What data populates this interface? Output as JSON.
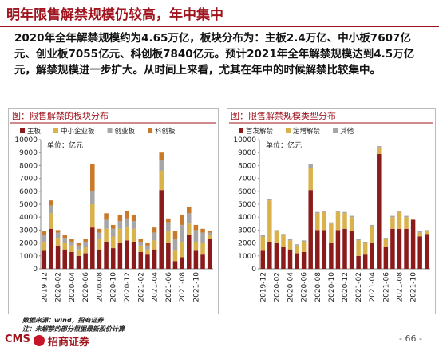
{
  "header": {
    "title": "明年限售解禁规模仍较高，年中集中"
  },
  "summary": "2020年全年解禁规模约为4.65万亿，板块分布为：主板2.4万亿、中小板7607亿元、创业板7055亿元、科创板7840亿元。预计2021年全年解禁规模达到4.5万亿元，解禁规模进一步扩大。从时间上来看，尤其在年中的时候解禁比较集中。",
  "chart_data": [
    {
      "type": "bar",
      "stacked": true,
      "title": "图：限售解禁的板块分布",
      "unit_label": "单位：亿元",
      "categories": [
        "2019-12",
        null,
        "2020-02",
        null,
        "2020-04",
        null,
        "2020-06",
        null,
        "2020-08",
        null,
        "2020-10",
        null,
        "2020-12",
        null,
        "2021-02",
        null,
        "2021-04",
        null,
        "2021-06",
        null,
        "2021-08",
        null,
        "2021-10",
        null,
        null
      ],
      "series": [
        {
          "name": "主板",
          "color": "#8b1a1a",
          "values": [
            1400,
            3100,
            1800,
            1500,
            1300,
            1000,
            1200,
            3200,
            1500,
            2100,
            1600,
            2000,
            2200,
            2100,
            1300,
            1100,
            1500,
            6100,
            2000,
            600,
            900,
            2600,
            1400,
            1100,
            2300
          ]
        },
        {
          "name": "中小企业板",
          "color": "#d9b24c",
          "values": [
            700,
            1200,
            600,
            500,
            500,
            500,
            500,
            1800,
            800,
            1000,
            900,
            1100,
            1000,
            1000,
            500,
            400,
            700,
            1500,
            900,
            800,
            1200,
            900,
            700,
            900,
            300
          ]
        },
        {
          "name": "创业板",
          "color": "#a6a6a6",
          "values": [
            500,
            600,
            400,
            400,
            300,
            300,
            400,
            1000,
            500,
            700,
            600,
            600,
            700,
            600,
            300,
            300,
            600,
            800,
            700,
            900,
            1300,
            800,
            900,
            800,
            200
          ]
        },
        {
          "name": "科创板",
          "color": "#c87a2a",
          "values": [
            300,
            400,
            200,
            200,
            200,
            200,
            200,
            2100,
            300,
            500,
            300,
            500,
            600,
            500,
            200,
            200,
            400,
            600,
            300,
            600,
            800,
            500,
            400,
            300,
            100
          ]
        }
      ],
      "ylim": [
        0,
        10000
      ],
      "yticks": [
        0,
        1000,
        2000,
        3000,
        4000,
        5000,
        6000,
        7000,
        8000,
        9000,
        10000
      ]
    },
    {
      "type": "bar",
      "stacked": true,
      "title": "图：限售解禁规模类型分布",
      "unit_label": "单位：亿元",
      "categories": [
        "2019-12",
        null,
        "2020-02",
        null,
        "2020-04",
        null,
        "2020-06",
        null,
        "2020-08",
        null,
        "2020-10",
        null,
        "2020-12",
        null,
        "2021-02",
        null,
        "2021-04",
        null,
        "2021-06",
        null,
        "2021-08",
        null,
        "2021-10",
        null,
        null
      ],
      "series": [
        {
          "name": "首发解禁",
          "color": "#8b1a1a",
          "values": [
            1400,
            2100,
            2000,
            1700,
            1500,
            1200,
            1300,
            6100,
            3000,
            3000,
            2000,
            3000,
            3100,
            2900,
            1000,
            1100,
            2000,
            8900,
            1700,
            3100,
            3100,
            3100,
            3800,
            2500,
            2700
          ]
        },
        {
          "name": "定增解禁",
          "color": "#d9b24c",
          "values": [
            1100,
            3200,
            900,
            900,
            700,
            600,
            800,
            1700,
            1300,
            1400,
            1500,
            1400,
            1200,
            1100,
            1200,
            900,
            1300,
            500,
            600,
            900,
            1300,
            900,
            0,
            300,
            200
          ]
        },
        {
          "name": "其他",
          "color": "#a6a6a6",
          "values": [
            100,
            100,
            100,
            100,
            100,
            100,
            100,
            300,
            100,
            100,
            100,
            100,
            100,
            100,
            100,
            100,
            100,
            100,
            100,
            100,
            100,
            100,
            0,
            100,
            100
          ]
        }
      ],
      "ylim": [
        0,
        10000
      ],
      "yticks": [
        0,
        1000,
        2000,
        3000,
        4000,
        5000,
        6000,
        7000,
        8000,
        9000,
        10000
      ]
    }
  ],
  "source": "数据来源：wind，招商证券",
  "note": "注：未解禁的部分根据最新股价计算",
  "footer": {
    "logo": "CMS",
    "brand": "招商证券",
    "page": "- 66 -"
  }
}
